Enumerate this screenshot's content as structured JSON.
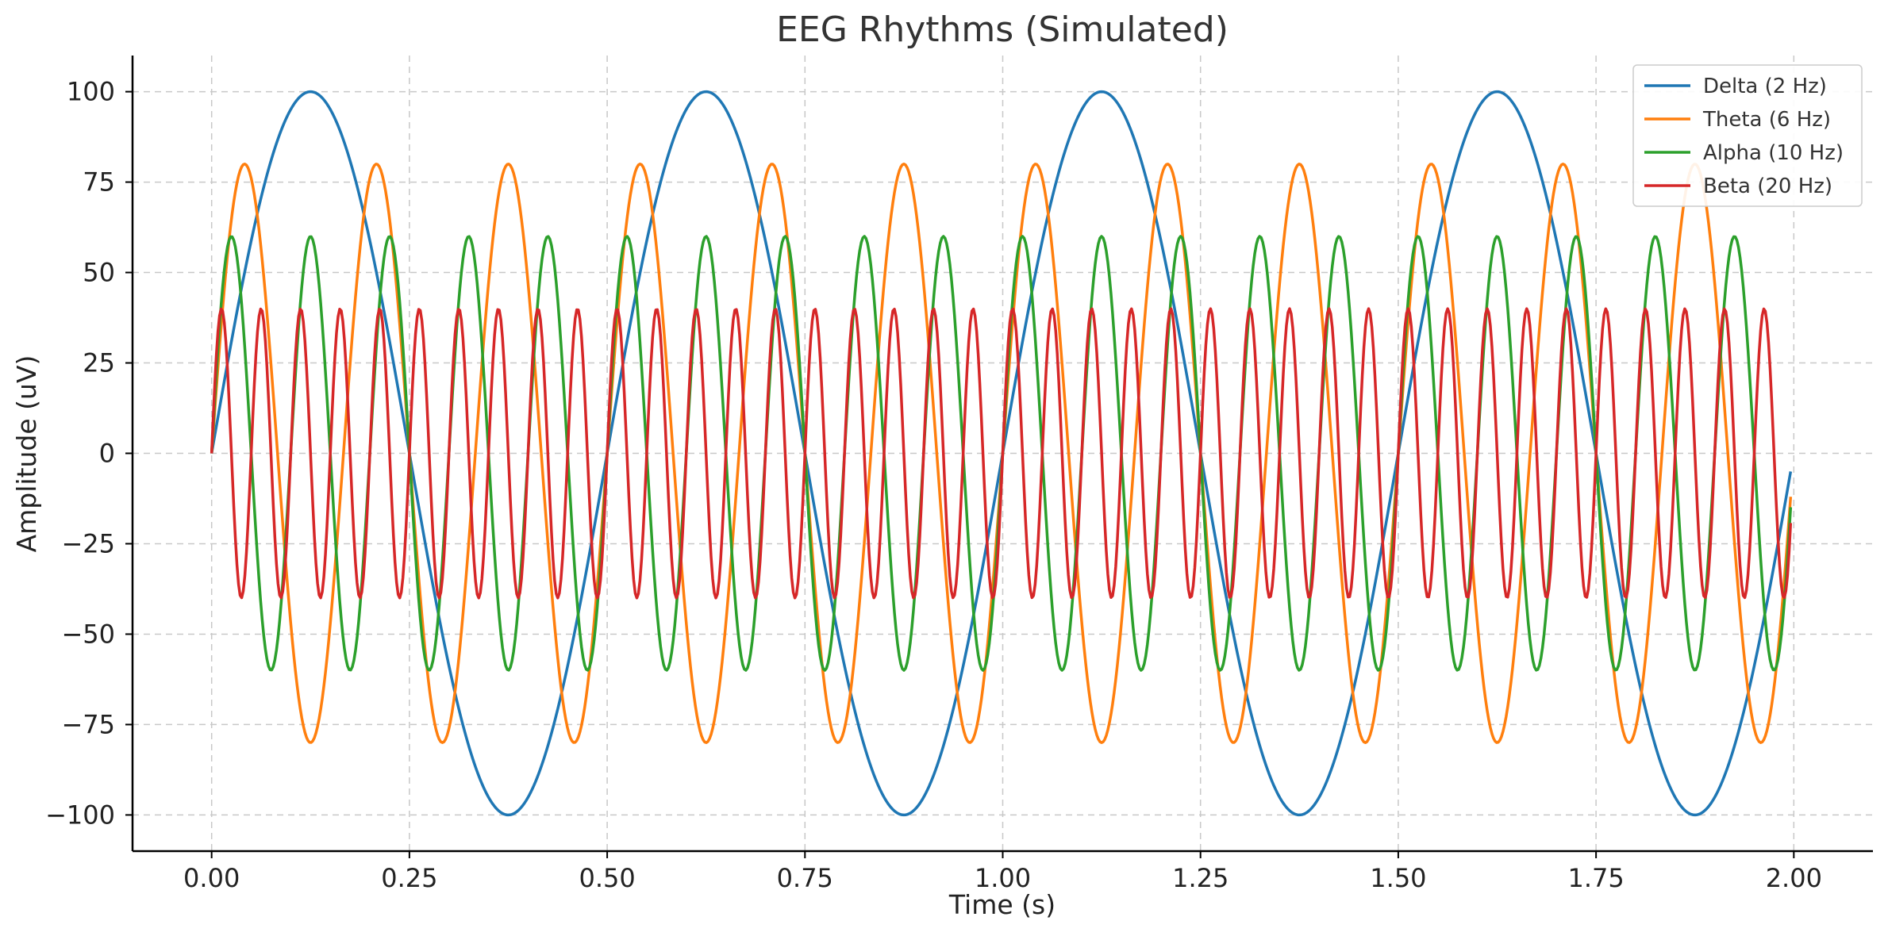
{
  "chart_data": {
    "type": "line",
    "title": "EEG Rhythms (Simulated)",
    "xlabel": "Time (s)",
    "ylabel": "Amplitude (uV)",
    "xlim": [
      -0.1,
      2.1
    ],
    "ylim": [
      -110,
      110
    ],
    "x_ticks": [
      0.0,
      0.25,
      0.5,
      0.75,
      1.0,
      1.25,
      1.5,
      1.75,
      2.0
    ],
    "x_tick_labels": [
      "0.00",
      "0.25",
      "0.50",
      "0.75",
      "1.00",
      "1.25",
      "1.50",
      "1.75",
      "2.00"
    ],
    "y_ticks": [
      100,
      75,
      50,
      25,
      0,
      -25,
      -50,
      -75,
      -100
    ],
    "y_tick_labels": [
      "100",
      "75",
      "50",
      "25",
      "0",
      "−25",
      "−50",
      "−75",
      "−100"
    ],
    "grid": true,
    "legend_position": "top-right",
    "x_range": [
      0.0,
      1.996
    ],
    "series": [
      {
        "name": "Delta (2 Hz)",
        "frequency_hz": 2,
        "amplitude": 100,
        "waveform": "sine",
        "color": "#1f77b4"
      },
      {
        "name": "Theta (6 Hz)",
        "frequency_hz": 6,
        "amplitude": 80,
        "waveform": "sine",
        "color": "#ff7f0e"
      },
      {
        "name": "Alpha (10 Hz)",
        "frequency_hz": 10,
        "amplitude": 60,
        "waveform": "sine",
        "color": "#2ca02c"
      },
      {
        "name": "Beta (20 Hz)",
        "frequency_hz": 20,
        "amplitude": 40,
        "waveform": "sine",
        "color": "#d62728"
      }
    ]
  }
}
